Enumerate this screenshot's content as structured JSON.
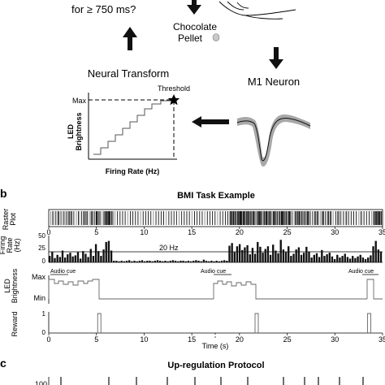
{
  "panel_a": {
    "question_tail": "for ≥ 750 ms?",
    "pellet_label_1": "Chocolate",
    "pellet_label_2": "Pellet",
    "transform_title": "Neural Transform",
    "neuron_title": "M1 Neuron",
    "threshold_label": "Threshold",
    "max_label": "Max",
    "y_axis_label_1": "LED",
    "y_axis_label_2": "Brightness",
    "x_axis_label": "Firing Rate (Hz)"
  },
  "panel_b": {
    "letter": "b",
    "title": "BMI Task Example",
    "raster_label_1": "Raster",
    "raster_label_2": "Plot",
    "rate_label_1": "Firing",
    "rate_label_2": "Rate",
    "rate_label_3": "(Hz)",
    "rate_ticks": [
      "50",
      "25",
      "0"
    ],
    "threshold_line_label": "20 Hz",
    "led_label_1": "LED",
    "led_label_2": "Brightness",
    "led_ticks": [
      "Max",
      "Min"
    ],
    "audio_cue_label": "Audio cue",
    "reward_label": "Reward",
    "reward_ticks": [
      "1",
      "0"
    ],
    "time_ticks": [
      "0",
      "5",
      "10",
      "15",
      "20",
      "25",
      "30",
      "35"
    ],
    "time_axis_label": "Time (s)"
  },
  "panel_c": {
    "letter": "c",
    "title": "Up-regulation Protocol",
    "partial_tick": "100"
  },
  "chart_data": {
    "type": "bar",
    "title": "BMI Task Example",
    "xlabel": "Time (s)",
    "xlim": [
      0,
      35
    ],
    "threshold_hz": 20,
    "rate_ylim": [
      0,
      50
    ],
    "firing_rate_hz": [
      12,
      20,
      8,
      14,
      10,
      22,
      9,
      15,
      18,
      11,
      13,
      19,
      7,
      21,
      16,
      10,
      25,
      12,
      34,
      21,
      12,
      24,
      38,
      40,
      22,
      3,
      3,
      2,
      3,
      2,
      3,
      4,
      2,
      3,
      2,
      3,
      4,
      2,
      3,
      3,
      2,
      3,
      4,
      3,
      2,
      3,
      2,
      3,
      4,
      3,
      2,
      3,
      3,
      2,
      3,
      2,
      3,
      4,
      3,
      2,
      5,
      3,
      2,
      3,
      2,
      3,
      2,
      3,
      4,
      3,
      31,
      36,
      19,
      30,
      34,
      23,
      28,
      32,
      15,
      27,
      16,
      38,
      29,
      18,
      25,
      30,
      14,
      33,
      22,
      17,
      42,
      24,
      19,
      30,
      12,
      16,
      24,
      28,
      14,
      18,
      29,
      20,
      9,
      14,
      17,
      10,
      23,
      12,
      15,
      18,
      11,
      6,
      14,
      9,
      12,
      16,
      10,
      7,
      12,
      8,
      11,
      14,
      9,
      6,
      9,
      13,
      30,
      40,
      24,
      20
    ],
    "audio_cue_times_s": [
      0,
      16.5,
      32.5
    ],
    "reward_times_s": [
      5.3,
      21.8,
      33.6
    ]
  }
}
